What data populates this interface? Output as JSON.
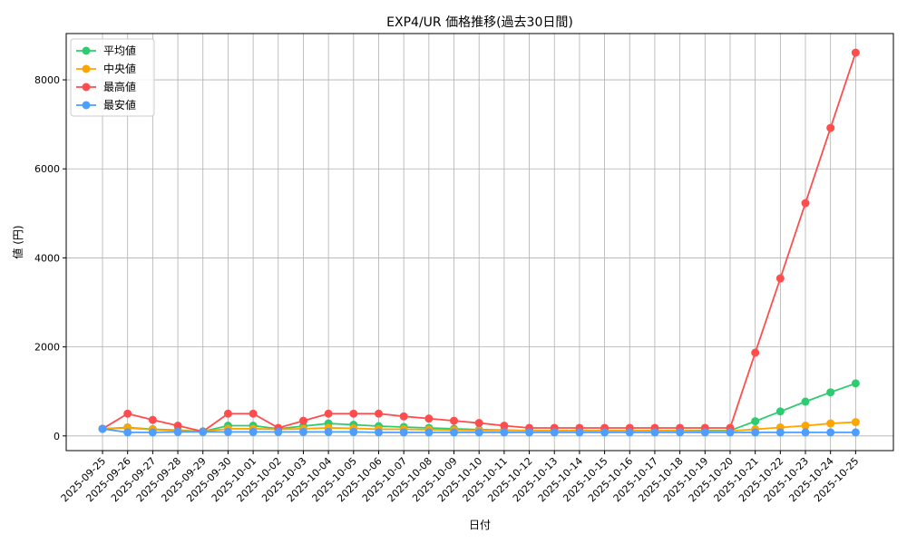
{
  "chart_data": {
    "type": "line",
    "title": "EXP4/UR 価格推移(過去30日間)",
    "xlabel": "日付",
    "ylabel": "値 (円)",
    "x": [
      "2025-09-25",
      "2025-09-26",
      "2025-09-27",
      "2025-09-28",
      "2025-09-29",
      "2025-09-30",
      "2025-10-01",
      "2025-10-02",
      "2025-10-03",
      "2025-10-04",
      "2025-10-05",
      "2025-10-06",
      "2025-10-07",
      "2025-10-08",
      "2025-10-09",
      "2025-10-10",
      "2025-10-11",
      "2025-10-12",
      "2025-10-13",
      "2025-10-14",
      "2025-10-15",
      "2025-10-16",
      "2025-10-17",
      "2025-10-18",
      "2025-10-19",
      "2025-10-20",
      "2025-10-21",
      "2025-10-22",
      "2025-10-23",
      "2025-10-24",
      "2025-10-25"
    ],
    "yticks": [
      0,
      2000,
      4000,
      6000,
      8000
    ],
    "ylim": [
      -330,
      9040
    ],
    "grid": true,
    "legend_position": "top-left",
    "series": [
      {
        "name": "平均値",
        "color": "#2ecc71",
        "values": [
          160,
          190,
          150,
          130,
          100,
          230,
          230,
          160,
          220,
          280,
          250,
          220,
          200,
          180,
          160,
          140,
          130,
          120,
          120,
          120,
          120,
          120,
          120,
          120,
          120,
          120,
          330,
          550,
          770,
          980,
          1180
        ]
      },
      {
        "name": "中央値",
        "color": "#ffa500",
        "values": [
          160,
          180,
          140,
          120,
          100,
          160,
          160,
          150,
          160,
          180,
          170,
          150,
          150,
          140,
          130,
          120,
          120,
          120,
          120,
          120,
          120,
          120,
          120,
          120,
          110,
          110,
          150,
          190,
          230,
          280,
          310
        ]
      },
      {
        "name": "最高値",
        "color": "#ff4d4d",
        "values": [
          160,
          500,
          360,
          230,
          100,
          500,
          500,
          180,
          340,
          500,
          500,
          500,
          440,
          390,
          340,
          290,
          230,
          180,
          180,
          180,
          180,
          180,
          180,
          180,
          180,
          180,
          1870,
          3540,
          5230,
          6920,
          8610
        ]
      },
      {
        "name": "最安値",
        "color": "#4d9eff",
        "values": [
          160,
          80,
          80,
          90,
          90,
          90,
          90,
          90,
          90,
          90,
          90,
          80,
          80,
          80,
          80,
          80,
          80,
          80,
          80,
          80,
          80,
          80,
          80,
          80,
          80,
          80,
          80,
          80,
          80,
          80,
          80
        ]
      }
    ]
  }
}
